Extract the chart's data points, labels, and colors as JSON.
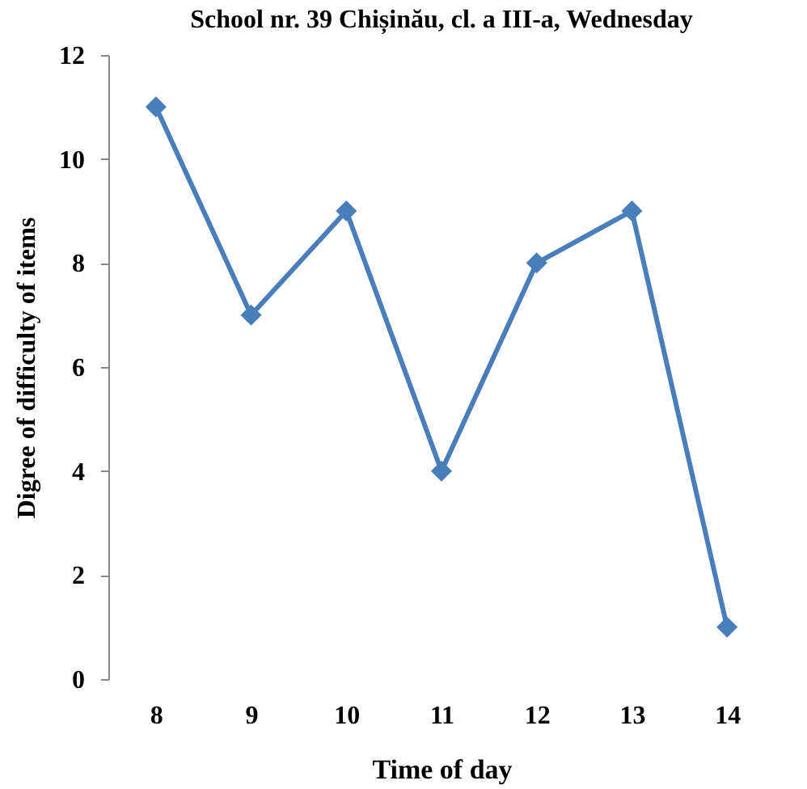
{
  "chart_data": {
    "type": "line",
    "title": "School nr. 39 Chișinău, cl. a III-a, Wednesday",
    "xlabel": "Time of day",
    "ylabel": "Digree of difficulty of items",
    "categories": [
      "8",
      "9",
      "10",
      "11",
      "12",
      "13",
      "14"
    ],
    "series": [
      {
        "color": "#4a7ebb",
        "values": [
          11,
          7,
          9,
          4,
          8,
          9,
          1
        ]
      }
    ],
    "ylim": [
      0,
      12
    ],
    "yticks": [
      0,
      2,
      4,
      6,
      8,
      10,
      12
    ],
    "marker": "diamond"
  }
}
